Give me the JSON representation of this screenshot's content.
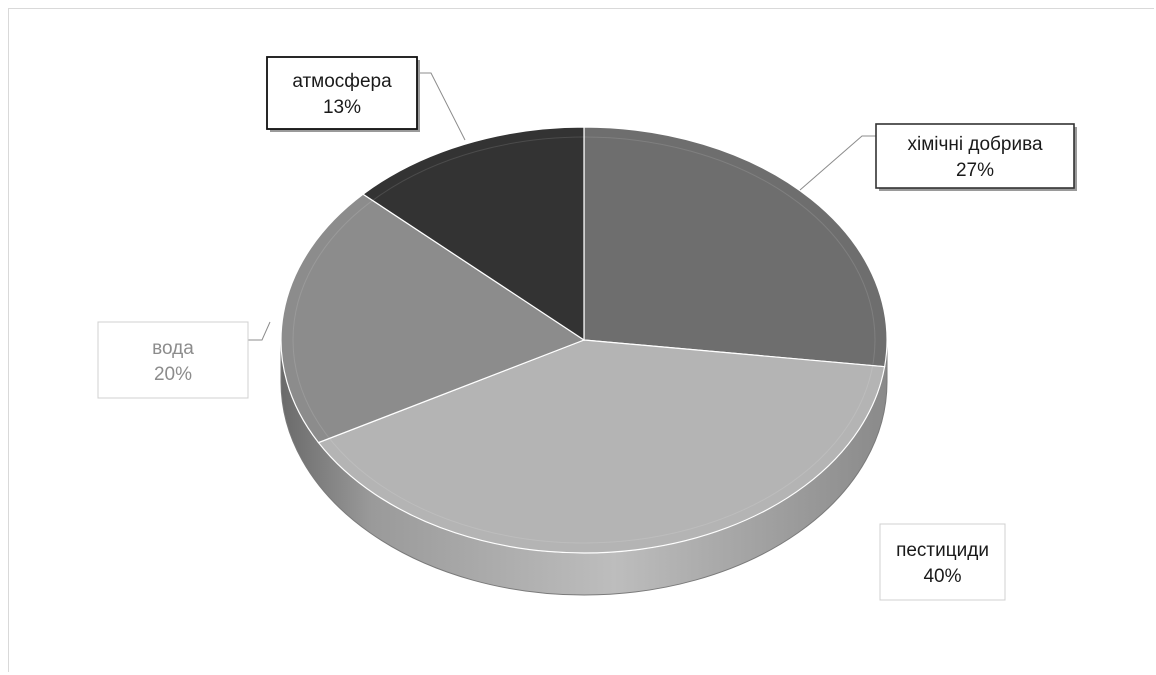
{
  "chart_data": {
    "type": "pie",
    "style": "3d",
    "categories": [
      "хімічні добрива",
      "пестициди",
      "вода",
      "атмосфера"
    ],
    "values": [
      27,
      40,
      20,
      13
    ],
    "labels": [
      "27%",
      "40%",
      "20%",
      "13%"
    ],
    "colors": [
      "#6e6e6e",
      "#b4b4b4",
      "#8c8c8c",
      "#333333"
    ],
    "data_labels": "callout"
  }
}
